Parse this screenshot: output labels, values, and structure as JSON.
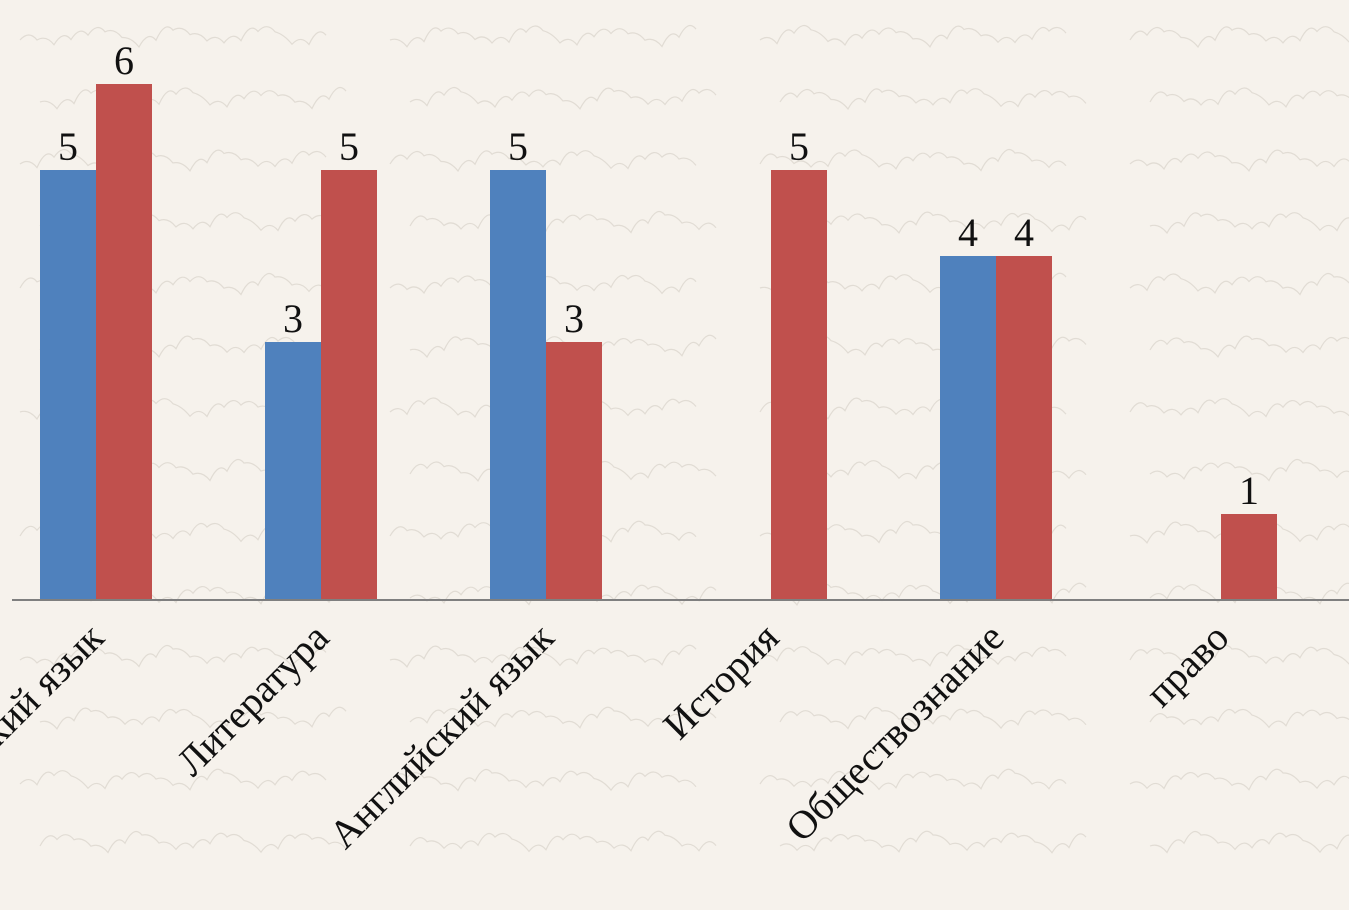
{
  "chart_data": {
    "type": "bar",
    "categories": [
      "Русский язык",
      "Литература",
      "Английский язык",
      "История",
      "Обществознание",
      "право"
    ],
    "visible_category_labels": [
      "кий язык",
      "Литература",
      "Английский язык",
      "История",
      "Обществознание",
      "право"
    ],
    "series": [
      {
        "values": [
          5,
          3,
          5,
          null,
          4,
          null
        ],
        "color": "#4f81bd"
      },
      {
        "values": [
          6,
          5,
          3,
          5,
          4,
          1
        ],
        "color": "#c0504d"
      }
    ],
    "ylim": [
      0,
      7
    ],
    "grid": false,
    "legend": "none",
    "title": "",
    "xlabel": "",
    "ylabel": ""
  }
}
